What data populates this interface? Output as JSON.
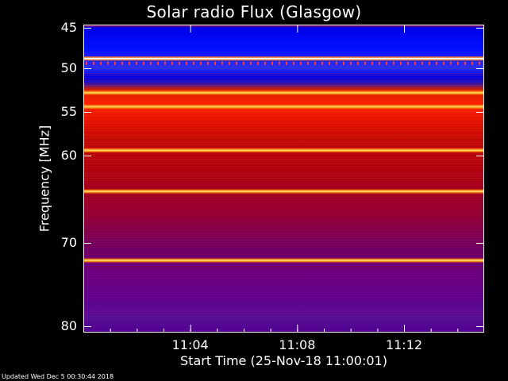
{
  "chart_data": {
    "type": "heatmap",
    "title": "Solar radio Flux (Glasgow)",
    "xlabel": "Start Time (25-Nov-18 11:00:01)",
    "ylabel": "Frequency [MHz]",
    "yticks": [
      "45",
      "50",
      "55",
      "60",
      "70",
      "80"
    ],
    "xticks": [
      "11:04",
      "11:08",
      "11:12"
    ],
    "ylim": [
      45,
      80
    ],
    "xlim_minutes": [
      0,
      15
    ],
    "footer": "Updated Wed Dec  5 00:30:44 2018",
    "bright_lines_mhz": [
      48.8,
      52.8,
      54.4,
      59.4,
      64.1,
      72.1
    ],
    "colors": {
      "background": "#000000",
      "text": "#ffffff"
    }
  }
}
